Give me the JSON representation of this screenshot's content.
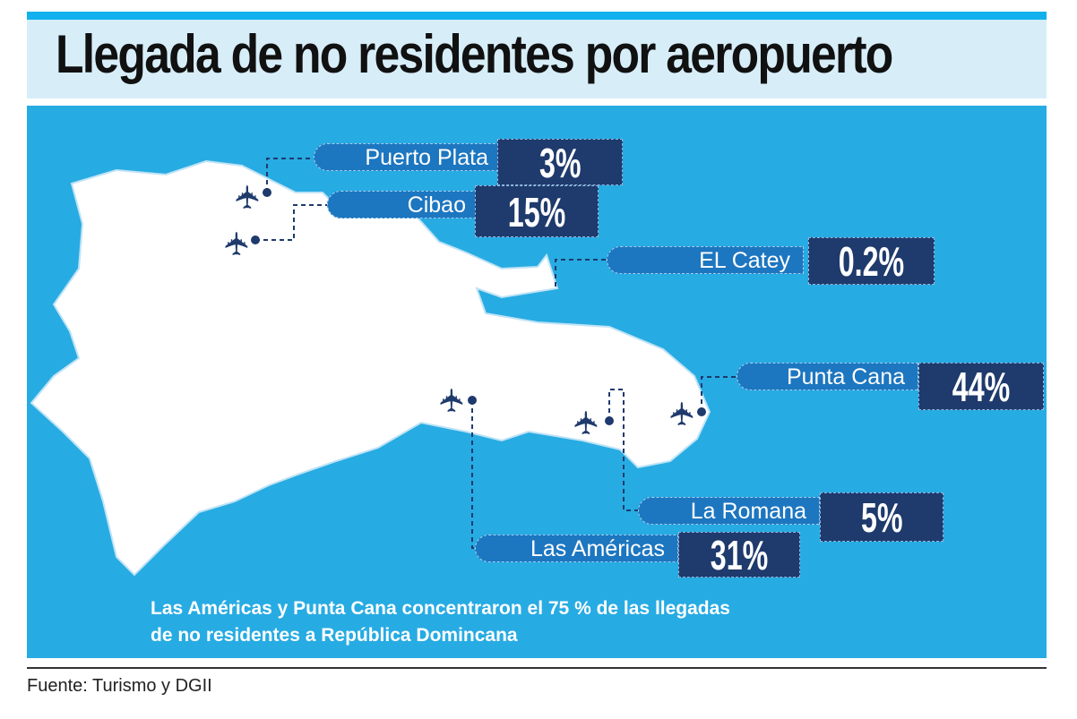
{
  "title": "Llegada de no residentes por aeropuerto",
  "airports": [
    {
      "name": "Puerto Plata",
      "value": "3%"
    },
    {
      "name": "Cibao",
      "value": "15%"
    },
    {
      "name": "EL Catey",
      "value": "0.2%"
    },
    {
      "name": "Punta Cana",
      "value": "44%"
    },
    {
      "name": "La Romana",
      "value": "5%"
    },
    {
      "name": "Las Américas",
      "value": "31%"
    }
  ],
  "caption": {
    "line1": "Las Américas y Punta Cana concentraron el 75 % de las llegadas",
    "line2": "de no residentes a República Domincana"
  },
  "source": "Fuente: Turismo y DGII",
  "colors": {
    "background": "#27abe3",
    "pill": "#1d76c0",
    "value_box": "#1f3a6c",
    "title_band": "#d7eef9"
  },
  "chart_data": {
    "type": "table",
    "title": "Llegada de no residentes por aeropuerto",
    "categories": [
      "Puerto Plata",
      "Cibao",
      "EL Catey",
      "Punta Cana",
      "La Romana",
      "Las Américas"
    ],
    "values": [
      3,
      15,
      0.2,
      44,
      5,
      31
    ],
    "unit": "%"
  }
}
